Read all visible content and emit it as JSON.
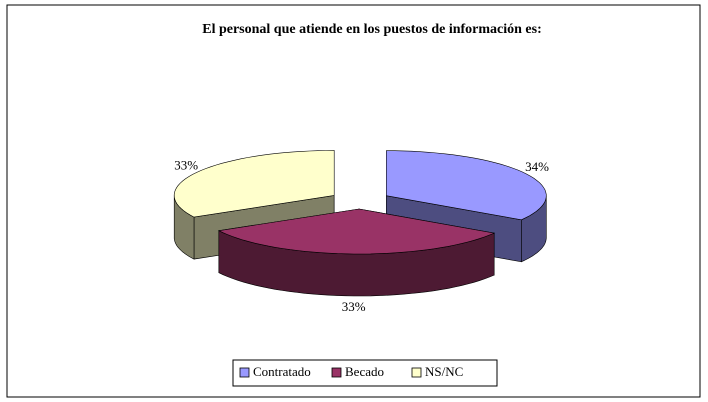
{
  "chart_data": {
    "type": "pie",
    "title": "El personal que atiende en los puestos de información es:",
    "categories": [
      "Contratado",
      "Becado",
      "NS/NC"
    ],
    "values": [
      34,
      33,
      33
    ],
    "value_labels": [
      "34%",
      "33%",
      "33%"
    ],
    "colors": [
      "#9999ff",
      "#993366",
      "#ffffcc"
    ],
    "legend": "bottom"
  }
}
